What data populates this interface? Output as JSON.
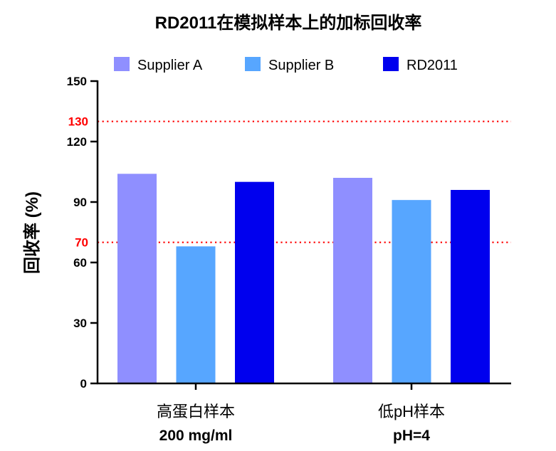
{
  "chart_data": {
    "type": "bar",
    "title": "RD2011在模拟样本上的加标回收率",
    "ylabel": "回收率 (%)",
    "xlabel": "",
    "categories": [
      "高蛋白样本",
      "低pH样本"
    ],
    "category_sublabels": [
      "200 mg/ml",
      "pH=4"
    ],
    "series": [
      {
        "name": "Supplier A",
        "color": "#8F8FFF",
        "values": [
          104,
          102
        ]
      },
      {
        "name": "Supplier B",
        "color": "#57A6FF",
        "values": [
          68,
          91
        ]
      },
      {
        "name": "RD2011",
        "color": "#0000EE",
        "values": [
          100,
          96
        ]
      }
    ],
    "ylim": [
      0,
      150
    ],
    "y_ticks": [
      0,
      30,
      60,
      90,
      120,
      150
    ],
    "reference_lines": [
      {
        "value": 130,
        "color": "#FF0000",
        "style": "dotted"
      },
      {
        "value": 70,
        "color": "#FF0000",
        "style": "dotted"
      }
    ],
    "legend_position": "top",
    "grid": false
  }
}
